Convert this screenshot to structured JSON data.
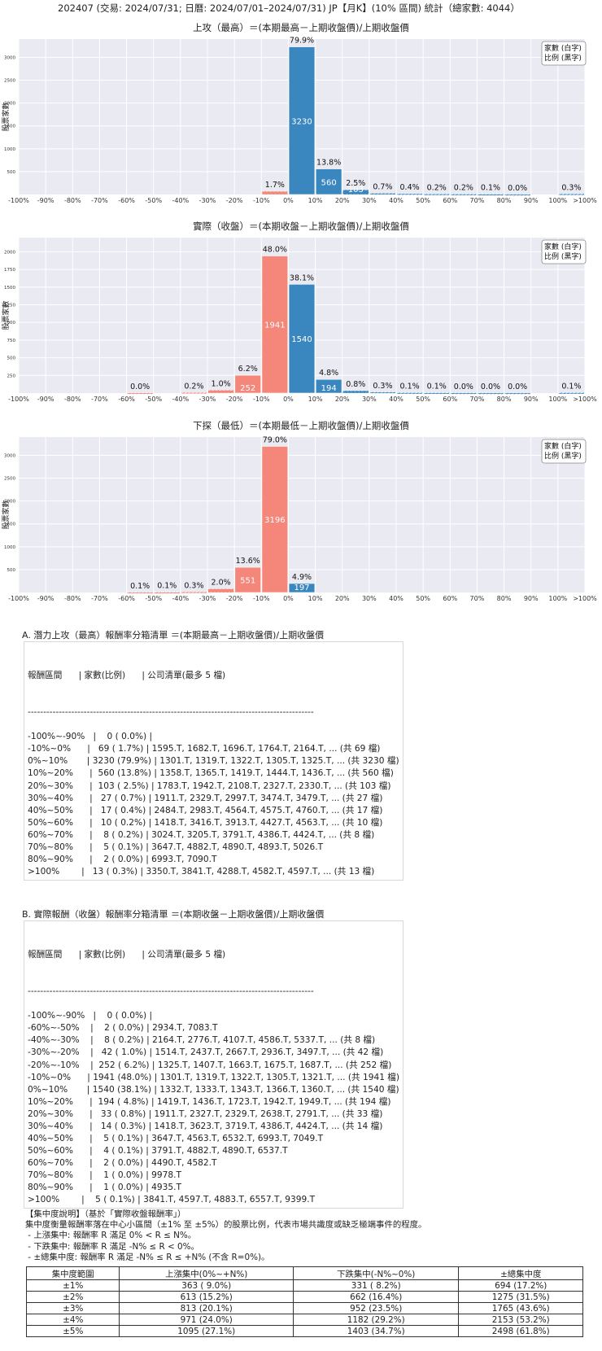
{
  "title": "202407 (交易: 2024/07/31; 日曆: 2024/07/01–2024/07/31) JP【月K】(10% 區間) 統計（總家數: 4044）",
  "legend": [
    "家數 (白字)",
    "比例 (黑字)"
  ],
  "colors": {
    "up": "#3a87c0",
    "down": "#f4877a",
    "plot_bg": "#eaeaf2",
    "grid": "#ffffff"
  },
  "chart_data": [
    {
      "type": "bar",
      "title": "上攻（最高）＝(本期最高－上期收盤價)/上期收盤價",
      "ylabel": "股票家數",
      "xlabel": "",
      "categories": [
        "-100%",
        "-90%",
        "-80%",
        "-70%",
        "-60%",
        "-50%",
        "-40%",
        "-30%",
        "-20%",
        "-10%",
        "0%",
        "10%",
        "20%",
        "30%",
        "40%",
        "50%",
        "60%",
        "70%",
        "80%",
        "90%",
        ">100%"
      ],
      "xtick_labels": [
        "-100%",
        "-90%",
        "-80%",
        "-70%",
        "-60%",
        "-50%",
        "-40%",
        "-30%",
        "-20%",
        "-10%",
        "0%",
        "10%",
        "20%",
        "30%",
        "40%",
        "50%",
        "60%",
        "70%",
        "80%",
        "90%",
        "100%",
        ">100%"
      ],
      "ylim": [
        0,
        3400
      ],
      "yticks": [
        500,
        1000,
        1500,
        2000,
        2500,
        3000
      ],
      "bars": [
        {
          "bin": 9,
          "count": 69,
          "pct": "1.7%",
          "label": "",
          "side": "down"
        },
        {
          "bin": 10,
          "count": 3230,
          "pct": "79.9%",
          "label": "3230",
          "side": "up"
        },
        {
          "bin": 11,
          "count": 560,
          "pct": "13.8%",
          "label": "560",
          "side": "up"
        },
        {
          "bin": 12,
          "count": 103,
          "pct": "2.5%",
          "label": "103",
          "side": "up"
        },
        {
          "bin": 13,
          "count": 27,
          "pct": "0.7%",
          "label": "",
          "side": "up"
        },
        {
          "bin": 14,
          "count": 17,
          "pct": "0.4%",
          "label": "",
          "side": "up"
        },
        {
          "bin": 15,
          "count": 10,
          "pct": "0.2%",
          "label": "",
          "side": "up"
        },
        {
          "bin": 16,
          "count": 8,
          "pct": "0.2%",
          "label": "",
          "side": "up"
        },
        {
          "bin": 17,
          "count": 5,
          "pct": "0.1%",
          "label": "",
          "side": "up"
        },
        {
          "bin": 18,
          "count": 2,
          "pct": "0.0%",
          "label": "",
          "side": "up"
        },
        {
          "bin": 20,
          "count": 13,
          "pct": "0.3%",
          "label": "",
          "side": "up"
        }
      ]
    },
    {
      "type": "bar",
      "title": "實際（收盤）＝(本期收盤－上期收盤價)/上期收盤價",
      "ylabel": "股票家數",
      "xlabel": "報酬率區間（每格＝10%）",
      "categories": [
        "-100%",
        "-90%",
        "-80%",
        "-70%",
        "-60%",
        "-50%",
        "-40%",
        "-30%",
        "-20%",
        "-10%",
        "0%",
        "10%",
        "20%",
        "30%",
        "40%",
        "50%",
        "60%",
        "70%",
        "80%",
        "90%",
        ">100%"
      ],
      "xtick_labels": [
        "-100%",
        "-90%",
        "-80%",
        "-70%",
        "-60%",
        "-50%",
        "-40%",
        "-30%",
        "-20%",
        "-10%",
        "0%",
        "10%",
        "20%",
        "30%",
        "40%",
        "50%",
        "60%",
        "70%",
        "80%",
        "90%",
        "100%",
        ">100%"
      ],
      "ylim": [
        0,
        2200
      ],
      "yticks": [
        250,
        500,
        750,
        1000,
        1250,
        1500,
        1750,
        2000
      ],
      "bars": [
        {
          "bin": 4,
          "count": 2,
          "pct": "0.0%",
          "label": "",
          "side": "down"
        },
        {
          "bin": 6,
          "count": 8,
          "pct": "0.2%",
          "label": "",
          "side": "down"
        },
        {
          "bin": 7,
          "count": 42,
          "pct": "1.0%",
          "label": "",
          "side": "down"
        },
        {
          "bin": 8,
          "count": 252,
          "pct": "6.2%",
          "label": "252",
          "side": "down"
        },
        {
          "bin": 9,
          "count": 1941,
          "pct": "48.0%",
          "label": "1941",
          "side": "down"
        },
        {
          "bin": 10,
          "count": 1540,
          "pct": "38.1%",
          "label": "1540",
          "side": "up"
        },
        {
          "bin": 11,
          "count": 194,
          "pct": "4.8%",
          "label": "194",
          "side": "up"
        },
        {
          "bin": 12,
          "count": 33,
          "pct": "0.8%",
          "label": "",
          "side": "up"
        },
        {
          "bin": 13,
          "count": 14,
          "pct": "0.3%",
          "label": "",
          "side": "up"
        },
        {
          "bin": 14,
          "count": 5,
          "pct": "0.1%",
          "label": "",
          "side": "up"
        },
        {
          "bin": 15,
          "count": 4,
          "pct": "0.1%",
          "label": "",
          "side": "up"
        },
        {
          "bin": 16,
          "count": 2,
          "pct": "0.0%",
          "label": "",
          "side": "up"
        },
        {
          "bin": 17,
          "count": 1,
          "pct": "0.0%",
          "label": "",
          "side": "up"
        },
        {
          "bin": 18,
          "count": 1,
          "pct": "0.0%",
          "label": "",
          "side": "up"
        },
        {
          "bin": 20,
          "count": 5,
          "pct": "0.1%",
          "label": "",
          "side": "up"
        }
      ]
    },
    {
      "type": "bar",
      "title": "下探（最低）＝(本期最低－上期收盤價)/上期收盤價",
      "ylabel": "股票家數",
      "xlabel": "報酬率區間（每格＝10%）",
      "categories": [
        "-100%",
        "-90%",
        "-80%",
        "-70%",
        "-60%",
        "-50%",
        "-40%",
        "-30%",
        "-20%",
        "-10%",
        "0%",
        "10%",
        "20%",
        "30%",
        "40%",
        "50%",
        "60%",
        "70%",
        "80%",
        "90%",
        ">100%"
      ],
      "xtick_labels": [
        "-100%",
        "-90%",
        "-80%",
        "-70%",
        "-60%",
        "-50%",
        "-40%",
        "-30%",
        "-20%",
        "-10%",
        "0%",
        "10%",
        "20%",
        "30%",
        "40%",
        "50%",
        "60%",
        "70%",
        "80%",
        "90%",
        "100%",
        ">100%"
      ],
      "ylim": [
        0,
        3400
      ],
      "yticks": [
        500,
        1000,
        1500,
        2000,
        2500,
        3000
      ],
      "bars": [
        {
          "bin": 4,
          "count": 4,
          "pct": "0.1%",
          "label": "",
          "side": "down"
        },
        {
          "bin": 5,
          "count": 5,
          "pct": "0.1%",
          "label": "",
          "side": "down"
        },
        {
          "bin": 6,
          "count": 11,
          "pct": "0.3%",
          "label": "",
          "side": "down"
        },
        {
          "bin": 7,
          "count": 80,
          "pct": "2.0%",
          "label": "",
          "side": "down"
        },
        {
          "bin": 8,
          "count": 551,
          "pct": "13.6%",
          "label": "551",
          "side": "down"
        },
        {
          "bin": 9,
          "count": 3196,
          "pct": "79.0%",
          "label": "3196",
          "side": "down"
        },
        {
          "bin": 10,
          "count": 197,
          "pct": "4.9%",
          "label": "197",
          "side": "up"
        }
      ]
    }
  ],
  "listA": {
    "title": "A. 潛力上攻（最高）報酬率分箱清單 ＝(本期最高－上期收盤價)/上期收盤價",
    "header": "報酬區間      | 家數(比例)      | 公司清單(最多 5 檔)",
    "separator": "--------------------------------------------------------------------------------------------",
    "rows": [
      "-100%~-90%   |    0 ( 0.0%) |",
      "-10%~0%      |   69 ( 1.7%) | 1595.T, 1682.T, 1696.T, 1764.T, 2164.T, ... (共 69 檔)",
      "0%~10%       | 3230 (79.9%) | 1301.T, 1319.T, 1322.T, 1305.T, 1325.T, ... (共 3230 檔)",
      "10%~20%      |  560 (13.8%) | 1358.T, 1365.T, 1419.T, 1444.T, 1436.T, ... (共 560 檔)",
      "20%~30%      |  103 ( 2.5%) | 1783.T, 1942.T, 2108.T, 2327.T, 2330.T, ... (共 103 檔)",
      "30%~40%      |   27 ( 0.7%) | 1911.T, 2329.T, 2997.T, 3474.T, 3479.T, ... (共 27 檔)",
      "40%~50%      |   17 ( 0.4%) | 2484.T, 2983.T, 4564.T, 4575.T, 4760.T, ... (共 17 檔)",
      "50%~60%      |   10 ( 0.2%) | 1418.T, 3416.T, 3913.T, 4427.T, 4563.T, ... (共 10 檔)",
      "60%~70%      |    8 ( 0.2%) | 3024.T, 3205.T, 3791.T, 4386.T, 4424.T, ... (共 8 檔)",
      "70%~80%      |    5 ( 0.1%) | 3647.T, 4882.T, 4890.T, 4893.T, 5026.T",
      "80%~90%      |    2 ( 0.0%) | 6993.T, 7090.T",
      ">100%        |   13 ( 0.3%) | 3350.T, 3841.T, 4288.T, 4582.T, 4597.T, ... (共 13 檔)"
    ]
  },
  "listB": {
    "title": "B. 實際報酬（收盤）報酬率分箱清單 ＝(本期收盤－上期收盤價)/上期收盤價",
    "header": "報酬區間      | 家數(比例)      | 公司清單(最多 5 檔)",
    "separator": "--------------------------------------------------------------------------------------------",
    "rows": [
      "-100%~-90%   |    0 ( 0.0%) |",
      "-60%~-50%    |    2 ( 0.0%) | 2934.T, 7083.T",
      "-40%~-30%    |    8 ( 0.2%) | 2164.T, 2776.T, 4107.T, 4586.T, 5337.T, ... (共 8 檔)",
      "-30%~-20%    |   42 ( 1.0%) | 1514.T, 2437.T, 2667.T, 2936.T, 3497.T, ... (共 42 檔)",
      "-20%~-10%    |  252 ( 6.2%) | 1325.T, 1407.T, 1663.T, 1675.T, 1687.T, ... (共 252 檔)",
      "-10%~0%      | 1941 (48.0%) | 1301.T, 1319.T, 1322.T, 1305.T, 1321.T, ... (共 1941 檔)",
      "0%~10%       | 1540 (38.1%) | 1332.T, 1333.T, 1343.T, 1366.T, 1360.T, ... (共 1540 檔)",
      "10%~20%      |  194 ( 4.8%) | 1419.T, 1436.T, 1723.T, 1942.T, 1949.T, ... (共 194 檔)",
      "20%~30%      |   33 ( 0.8%) | 1911.T, 2327.T, 2329.T, 2638.T, 2791.T, ... (共 33 檔)",
      "30%~40%      |   14 ( 0.3%) | 1418.T, 3623.T, 3719.T, 4386.T, 4424.T, ... (共 14 檔)",
      "40%~50%      |    5 ( 0.1%) | 3647.T, 4563.T, 6532.T, 6993.T, 7049.T",
      "50%~60%      |    4 ( 0.1%) | 3791.T, 4882.T, 4890.T, 6537.T",
      "60%~70%      |    2 ( 0.0%) | 4490.T, 4582.T",
      "70%~80%      |    1 ( 0.0%) | 9978.T",
      "80%~90%      |    1 ( 0.0%) | 4935.T",
      ">100%        |    5 ( 0.1%) | 3841.T, 4597.T, 4883.T, 6557.T, 9399.T"
    ]
  },
  "concentration": {
    "lines": [
      "【集中度說明】（基於「實際收盤報酬率」）",
      "集中度衡量報酬率落在中心小區間（±1% 至 ±5%）的股票比例，代表市場共識度或缺乏極端事件的程度。",
      " - 上漲集中: 報酬率 R 滿足 0% < R ≤ N%。",
      " - 下跌集中: 報酬率 R 滿足 -N% ≤ R < 0%。",
      " - ±總集中度: 報酬率 R 滿足 -N% ≤ R ≤ +N% (不含 R=0%)。"
    ],
    "headers": [
      "集中度範圍",
      "上漲集中(0%~+N%)",
      "下跌集中(-N%~0%)",
      "±總集中度"
    ],
    "rows": [
      [
        "±1%",
        "363 ( 9.0%)",
        "331 ( 8.2%)",
        "694 (17.2%)"
      ],
      [
        "±2%",
        "613 (15.2%)",
        "662 (16.4%)",
        "1275 (31.5%)"
      ],
      [
        "±3%",
        "813 (20.1%)",
        "952 (23.5%)",
        "1765 (43.6%)"
      ],
      [
        "±4%",
        "971 (24.0%)",
        "1182 (29.2%)",
        "2153 (53.2%)"
      ],
      [
        "±5%",
        "1095 (27.1%)",
        "1403 (34.7%)",
        "2498 (61.8%)"
      ]
    ]
  }
}
